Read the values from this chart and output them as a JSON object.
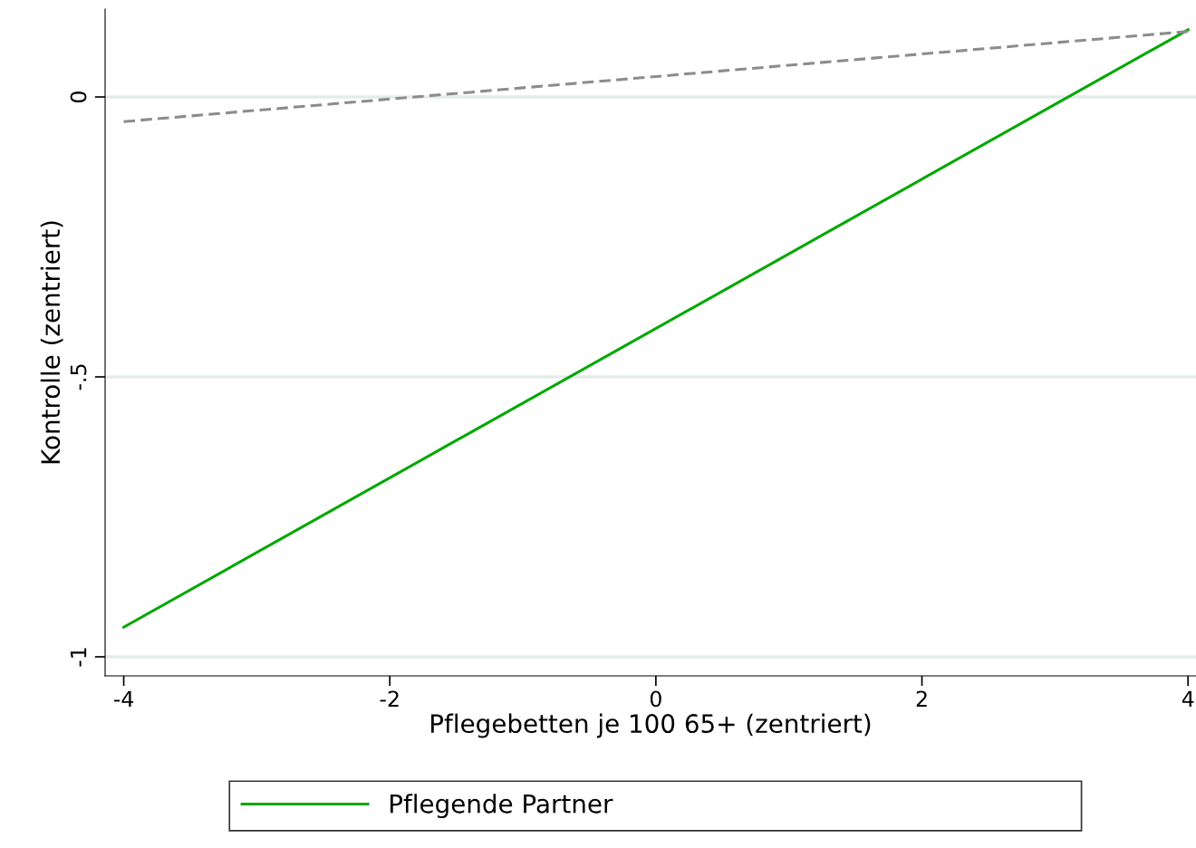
{
  "chart_data": {
    "type": "line",
    "xlabel": "Pflegebetten je 100 65+ (zentriert)",
    "ylabel": "Kontrolle (zentriert)",
    "x": [
      -4,
      4
    ],
    "series": [
      {
        "name": "Pflegende Partner",
        "color": "#00a800",
        "values": [
          -0.947,
          0.12
        ],
        "line_style": "solid"
      },
      {
        "color": "#8c8c8c",
        "values": [
          -0.044,
          0.117
        ],
        "line_style": "dashed"
      }
    ],
    "xlim": [
      -4.14,
      4.06
    ],
    "ylim": [
      -1.034,
      0.157
    ],
    "xticks": [
      -4,
      -2,
      0,
      2,
      4
    ],
    "yticks": [
      {
        "value": -1,
        "label": "-1"
      },
      {
        "value": -0.5,
        "label": "-.5"
      },
      {
        "value": 0,
        "label": "0"
      }
    ],
    "grid": "y",
    "legend": "bottom",
    "marker": "none"
  }
}
